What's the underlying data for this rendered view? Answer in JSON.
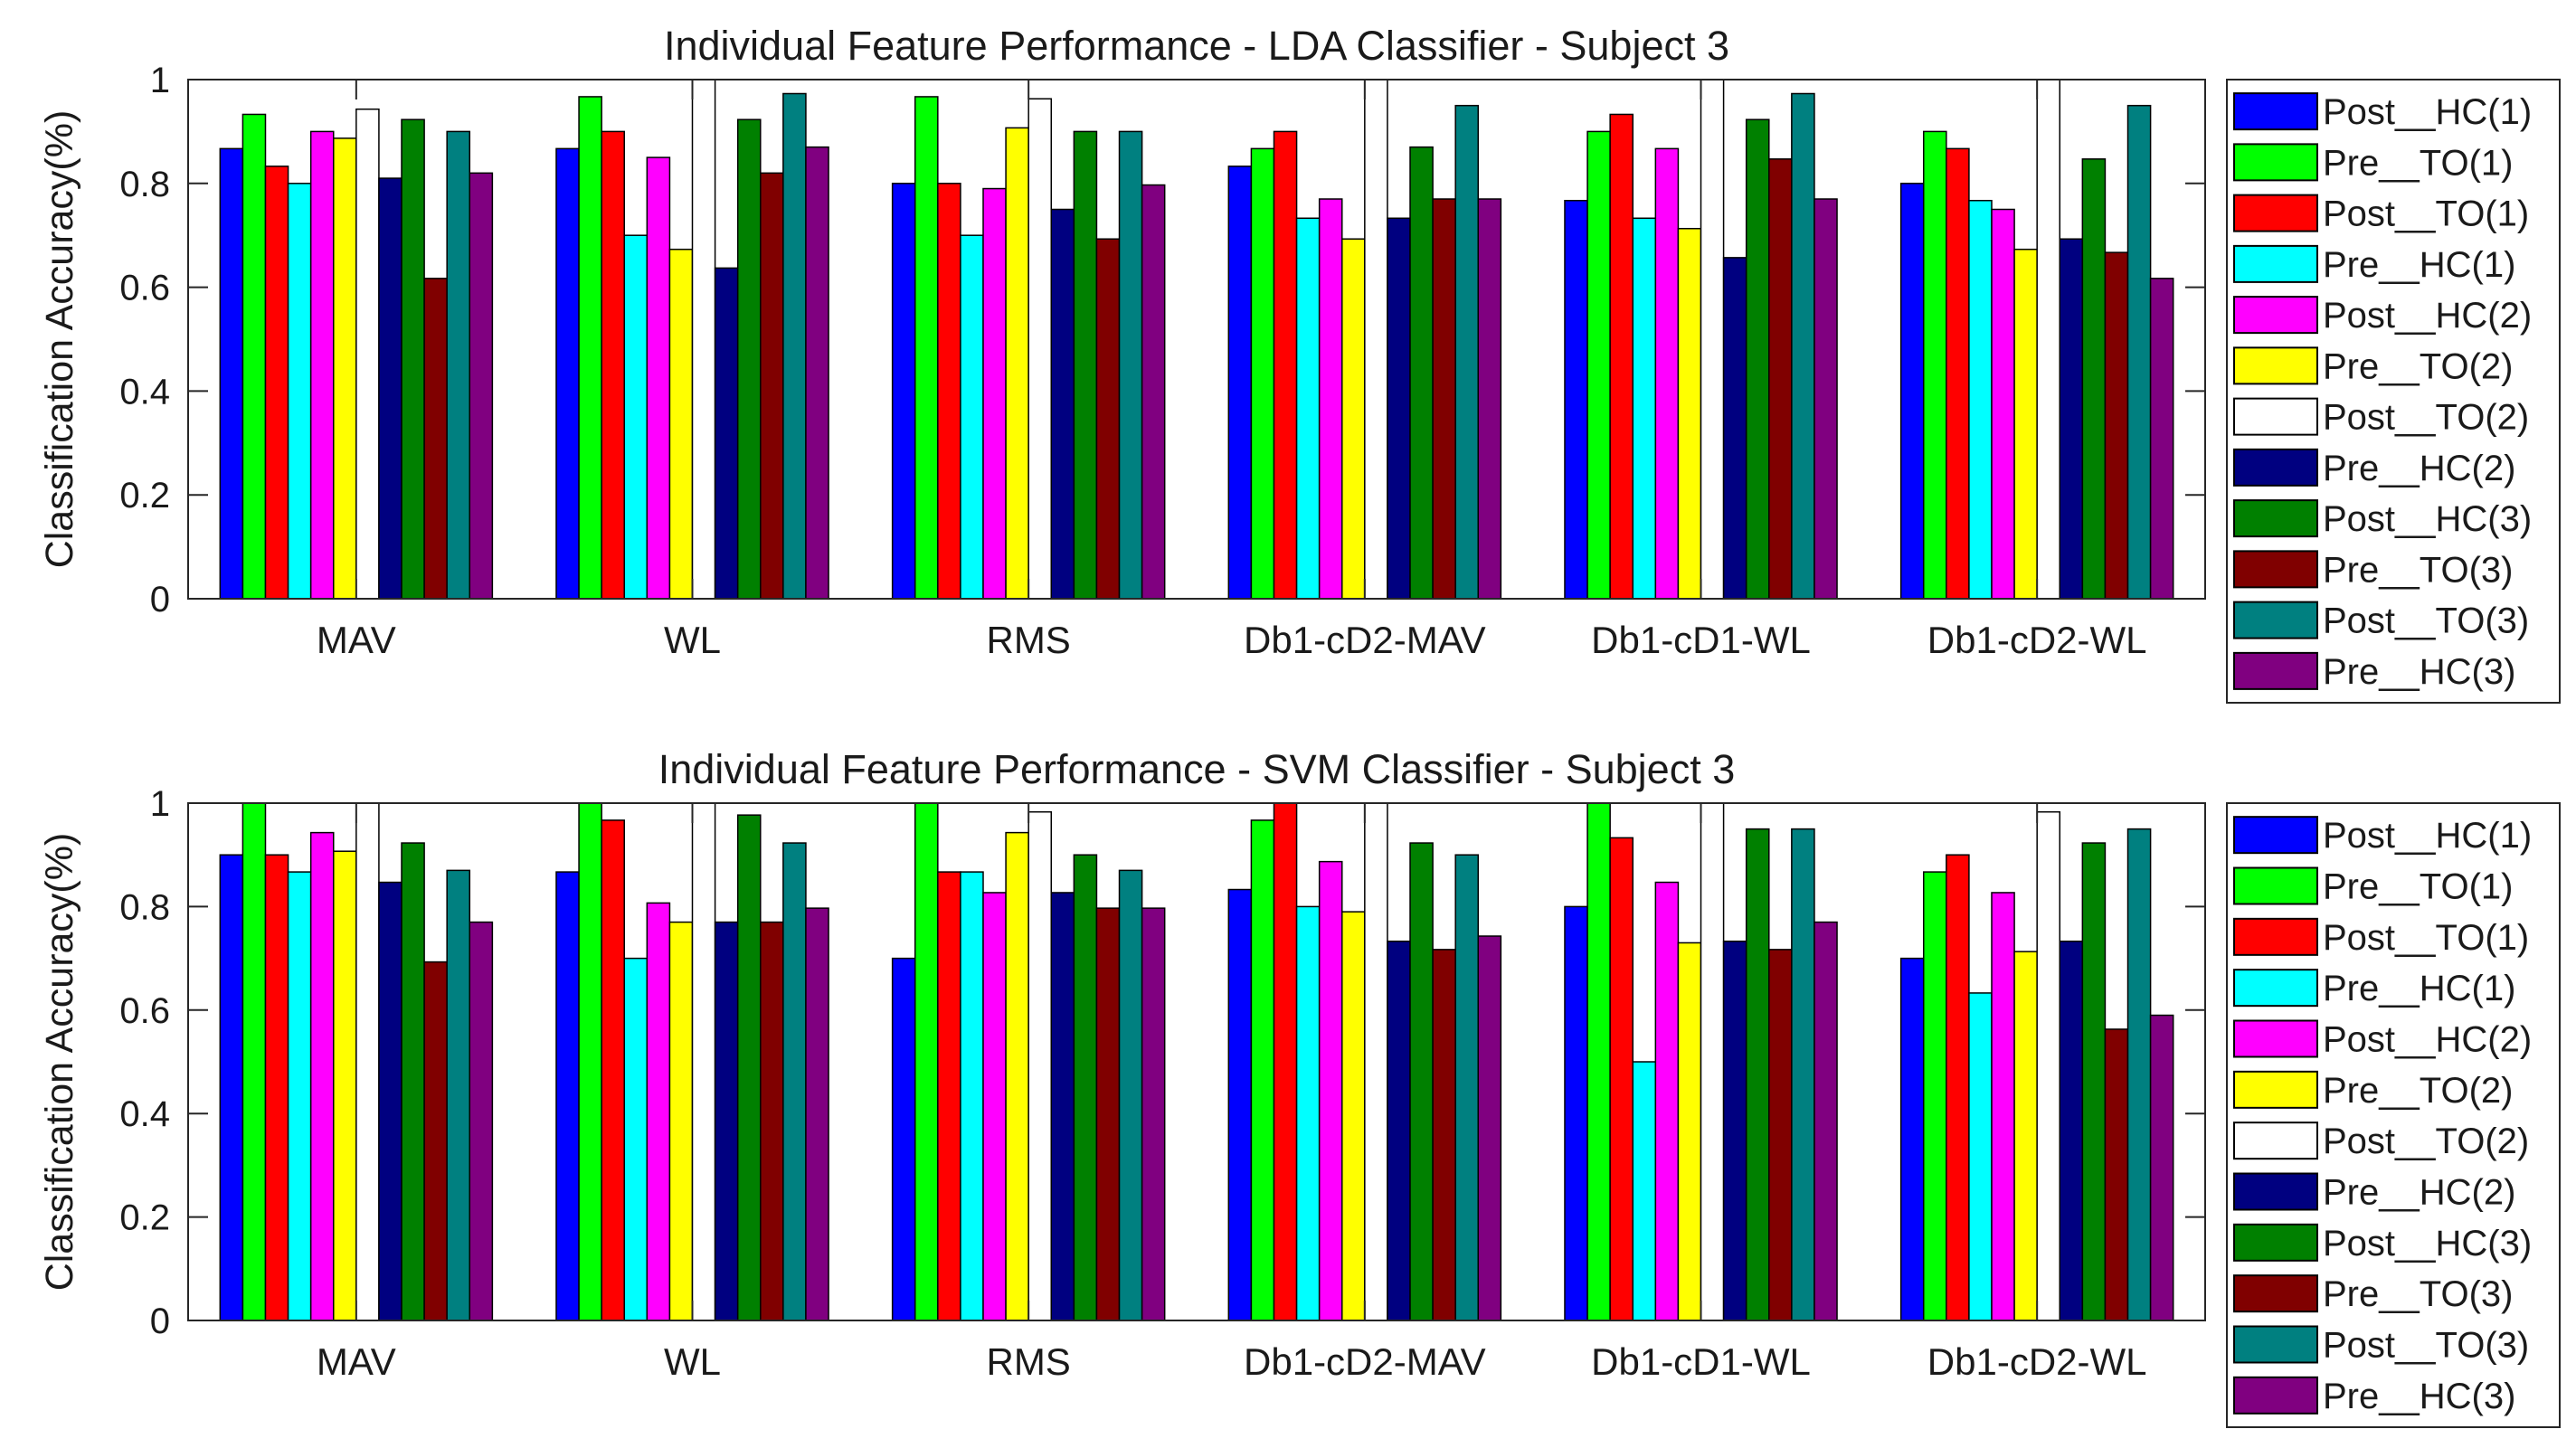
{
  "chart_data": [
    {
      "type": "bar",
      "title": "Individual Feature Performance - LDA Classifier - Subject 3",
      "xlabel": "",
      "ylabel": "Classification Accuracy(%)",
      "ylim": [
        0,
        1
      ],
      "yticks": [
        "0",
        "0.2",
        "0.4",
        "0.6",
        "0.8",
        "1"
      ],
      "grid": false,
      "legend_position": "right",
      "categories": [
        "MAV",
        "WL",
        "RMS",
        "Db1-cD2-MAV",
        "Db1-cD1-WL",
        "Db1-cD2-WL"
      ],
      "series": [
        {
          "name": "Post__HC(1)",
          "color": "#0000ff",
          "values": [
            0.867,
            0.867,
            0.8,
            0.833,
            0.767,
            0.8
          ]
        },
        {
          "name": "Pre__TO(1)",
          "color": "#00ff00",
          "values": [
            0.933,
            0.967,
            0.967,
            0.867,
            0.9,
            0.9
          ]
        },
        {
          "name": "Post__TO(1)",
          "color": "#ff0000",
          "values": [
            0.833,
            0.9,
            0.8,
            0.9,
            0.933,
            0.867
          ]
        },
        {
          "name": "Pre__HC(1)",
          "color": "#00ffff",
          "values": [
            0.8,
            0.7,
            0.7,
            0.733,
            0.733,
            0.767
          ]
        },
        {
          "name": "Post__HC(2)",
          "color": "#ff00ff",
          "values": [
            0.9,
            0.85,
            0.79,
            0.77,
            0.867,
            0.75
          ]
        },
        {
          "name": "Pre__TO(2)",
          "color": "#ffff00",
          "values": [
            0.887,
            0.673,
            0.907,
            0.693,
            0.713,
            0.673
          ]
        },
        {
          "name": "Post__TO(2)",
          "color": "#ffffff",
          "values": [
            0.943,
            1.0,
            0.963,
            1.0,
            1.0,
            1.0
          ]
        },
        {
          "name": "Pre__HC(2)",
          "color": "#000080",
          "values": [
            0.81,
            0.637,
            0.75,
            0.733,
            0.657,
            0.693
          ]
        },
        {
          "name": "Post__HC(3)",
          "color": "#008000",
          "values": [
            0.923,
            0.923,
            0.9,
            0.87,
            0.923,
            0.847
          ]
        },
        {
          "name": "Pre__TO(3)",
          "color": "#800000",
          "values": [
            0.617,
            0.82,
            0.693,
            0.77,
            0.847,
            0.667
          ]
        },
        {
          "name": "Post__TO(3)",
          "color": "#008080",
          "values": [
            0.9,
            0.973,
            0.9,
            0.95,
            0.973,
            0.95
          ]
        },
        {
          "name": "Pre__HC(3)",
          "color": "#800080",
          "values": [
            0.82,
            0.87,
            0.797,
            0.77,
            0.77,
            0.617
          ]
        }
      ]
    },
    {
      "type": "bar",
      "title": "Individual Feature Performance - SVM Classifier - Subject 3",
      "xlabel": "",
      "ylabel": "Classification Accuracy(%)",
      "ylim": [
        0,
        1
      ],
      "yticks": [
        "0",
        "0.2",
        "0.4",
        "0.6",
        "0.8",
        "1"
      ],
      "grid": false,
      "legend_position": "right",
      "categories": [
        "MAV",
        "WL",
        "RMS",
        "Db1-cD2-MAV",
        "Db1-cD1-WL",
        "Db1-cD2-WL"
      ],
      "series": [
        {
          "name": "Post__HC(1)",
          "color": "#0000ff",
          "values": [
            0.9,
            0.867,
            0.7,
            0.833,
            0.8,
            0.7
          ]
        },
        {
          "name": "Pre__TO(1)",
          "color": "#00ff00",
          "values": [
            1.0,
            1.0,
            1.0,
            0.967,
            1.0,
            0.867
          ]
        },
        {
          "name": "Post__TO(1)",
          "color": "#ff0000",
          "values": [
            0.9,
            0.967,
            0.867,
            1.0,
            0.933,
            0.9
          ]
        },
        {
          "name": "Pre__HC(1)",
          "color": "#00ffff",
          "values": [
            0.867,
            0.7,
            0.867,
            0.8,
            0.5,
            0.633
          ]
        },
        {
          "name": "Post__HC(2)",
          "color": "#ff00ff",
          "values": [
            0.943,
            0.807,
            0.827,
            0.887,
            0.847,
            0.827
          ]
        },
        {
          "name": "Pre__TO(2)",
          "color": "#ffff00",
          "values": [
            0.907,
            0.77,
            0.943,
            0.79,
            0.73,
            0.713
          ]
        },
        {
          "name": "Post__TO(2)",
          "color": "#ffffff",
          "values": [
            1.0,
            1.0,
            0.983,
            1.0,
            1.0,
            0.983
          ]
        },
        {
          "name": "Pre__HC(2)",
          "color": "#000080",
          "values": [
            0.847,
            0.77,
            0.827,
            0.733,
            0.733,
            0.733
          ]
        },
        {
          "name": "Post__HC(3)",
          "color": "#008000",
          "values": [
            0.923,
            0.977,
            0.9,
            0.923,
            0.95,
            0.923
          ]
        },
        {
          "name": "Pre__TO(3)",
          "color": "#800000",
          "values": [
            0.693,
            0.77,
            0.797,
            0.717,
            0.717,
            0.563
          ]
        },
        {
          "name": "Post__TO(3)",
          "color": "#008080",
          "values": [
            0.87,
            0.923,
            0.87,
            0.9,
            0.95,
            0.95
          ]
        },
        {
          "name": "Pre__HC(3)",
          "color": "#800080",
          "values": [
            0.77,
            0.797,
            0.797,
            0.743,
            0.77,
            0.59
          ]
        }
      ]
    }
  ]
}
